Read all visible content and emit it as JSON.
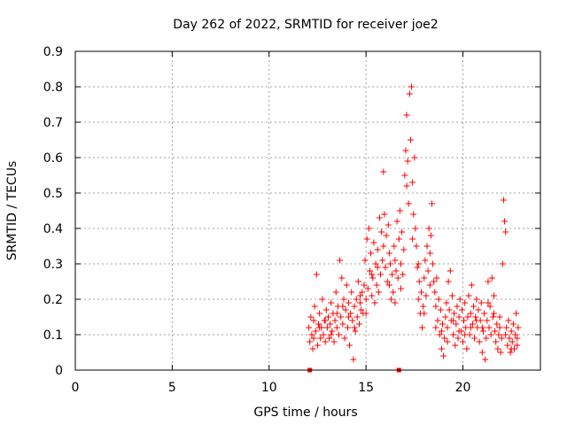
{
  "chart_data": {
    "type": "scatter",
    "title": "Day 262 of 2022, SRMTID for receiver joe2",
    "xlabel": "GPS time / hours",
    "ylabel": "SRMTID / TECUs",
    "xlim": [
      0,
      24
    ],
    "ylim": [
      0,
      0.9
    ],
    "xticks": [
      0,
      5,
      10,
      15,
      20
    ],
    "xtick_labels": [
      "0",
      "5",
      "10",
      "15",
      "20"
    ],
    "yticks": [
      0,
      0.1,
      0.2,
      0.3,
      0.4,
      0.5,
      0.6,
      0.7,
      0.8,
      0.9
    ],
    "ytick_labels": [
      "0",
      "0.1",
      "0.2",
      "0.3",
      "0.4",
      "0.5",
      "0.6",
      "0.7",
      "0.8",
      "0.9"
    ],
    "grid": true,
    "marker": "plus",
    "series_color": "#ff0000",
    "zero_markers_x": [
      12.1,
      16.7
    ],
    "series": [
      {
        "name": "SRMTID",
        "points": [
          [
            12.05,
            0.12
          ],
          [
            12.1,
            0.08
          ],
          [
            12.15,
            0.15
          ],
          [
            12.2,
            0.1
          ],
          [
            12.25,
            0.06
          ],
          [
            12.3,
            0.14
          ],
          [
            12.35,
            0.18
          ],
          [
            12.4,
            0.11
          ],
          [
            12.45,
            0.27
          ],
          [
            12.5,
            0.07
          ],
          [
            12.55,
            0.13
          ],
          [
            12.6,
            0.16
          ],
          [
            12.65,
            0.09
          ],
          [
            12.7,
            0.12
          ],
          [
            12.75,
            0.2
          ],
          [
            12.8,
            0.1
          ],
          [
            12.85,
            0.14
          ],
          [
            12.9,
            0.08
          ],
          [
            12.95,
            0.17
          ],
          [
            13.0,
            0.12
          ],
          [
            13.05,
            0.15
          ],
          [
            13.1,
            0.09
          ],
          [
            13.15,
            0.13
          ],
          [
            13.2,
            0.19
          ],
          [
            13.25,
            0.11
          ],
          [
            13.3,
            0.16
          ],
          [
            13.35,
            0.08
          ],
          [
            13.4,
            0.14
          ],
          [
            13.45,
            0.22
          ],
          [
            13.5,
            0.12
          ],
          [
            13.55,
            0.18
          ],
          [
            13.6,
            0.1
          ],
          [
            13.65,
            0.31
          ],
          [
            13.7,
            0.15
          ],
          [
            13.75,
            0.26
          ],
          [
            13.8,
            0.13
          ],
          [
            13.85,
            0.2
          ],
          [
            13.9,
            0.09
          ],
          [
            13.95,
            0.17
          ],
          [
            14.0,
            0.24
          ],
          [
            14.05,
            0.12
          ],
          [
            14.1,
            0.19
          ],
          [
            14.15,
            0.07
          ],
          [
            14.2,
            0.16
          ],
          [
            14.25,
            0.22
          ],
          [
            14.3,
            0.14
          ],
          [
            14.35,
            0.03
          ],
          [
            14.4,
            0.18
          ],
          [
            14.45,
            0.11
          ],
          [
            14.5,
            0.2
          ],
          [
            14.55,
            0.15
          ],
          [
            14.6,
            0.25
          ],
          [
            14.65,
            0.13
          ],
          [
            14.7,
            0.19
          ],
          [
            14.75,
            0.17
          ],
          [
            14.8,
            0.22
          ],
          [
            14.85,
            0.16
          ],
          [
            14.9,
            0.24
          ],
          [
            14.95,
            0.31
          ],
          [
            15.0,
            0.2
          ],
          [
            15.05,
            0.37
          ],
          [
            15.1,
            0.23
          ],
          [
            15.15,
            0.4
          ],
          [
            15.2,
            0.28
          ],
          [
            15.25,
            0.33
          ],
          [
            15.3,
            0.21
          ],
          [
            15.35,
            0.26
          ],
          [
            15.4,
            0.36
          ],
          [
            15.45,
            0.19
          ],
          [
            15.5,
            0.3
          ],
          [
            15.55,
            0.24
          ],
          [
            15.6,
            0.34
          ],
          [
            15.65,
            0.22
          ],
          [
            15.7,
            0.43
          ],
          [
            15.75,
            0.27
          ],
          [
            15.8,
            0.39
          ],
          [
            15.85,
            0.31
          ],
          [
            15.9,
            0.56
          ],
          [
            15.95,
            0.44
          ],
          [
            16.0,
            0.29
          ],
          [
            16.05,
            0.38
          ],
          [
            16.1,
            0.25
          ],
          [
            16.15,
            0.41
          ],
          [
            16.2,
            0.33
          ],
          [
            16.25,
            0.3
          ],
          [
            16.3,
            0.2
          ],
          [
            16.35,
            0.27
          ],
          [
            16.4,
            0.22
          ],
          [
            16.45,
            0.35
          ],
          [
            16.5,
            0.31
          ],
          [
            16.55,
            0.28
          ],
          [
            16.6,
            0.42
          ],
          [
            16.65,
            0.26
          ],
          [
            16.7,
            0.37
          ],
          [
            16.75,
            0.45
          ],
          [
            16.8,
            0.3
          ],
          [
            16.85,
            0.39
          ],
          [
            16.9,
            0.27
          ],
          [
            16.95,
            0.34
          ],
          [
            17.0,
            0.55
          ],
          [
            17.05,
            0.62
          ],
          [
            17.1,
            0.72
          ],
          [
            17.15,
            0.59
          ],
          [
            17.2,
            0.47
          ],
          [
            17.25,
            0.78
          ],
          [
            17.3,
            0.65
          ],
          [
            17.35,
            0.8
          ],
          [
            17.4,
            0.53
          ],
          [
            17.45,
            0.44
          ],
          [
            17.5,
            0.6
          ],
          [
            17.55,
            0.4
          ],
          [
            17.6,
            0.35
          ],
          [
            17.65,
            0.29
          ],
          [
            17.7,
            0.2
          ],
          [
            17.75,
            0.25
          ],
          [
            17.8,
            0.16
          ],
          [
            17.85,
            0.22
          ],
          [
            17.9,
            0.12
          ],
          [
            17.95,
            0.18
          ],
          [
            18.0,
            0.26
          ],
          [
            18.05,
            0.31
          ],
          [
            18.1,
            0.21
          ],
          [
            18.15,
            0.35
          ],
          [
            18.2,
            0.28
          ],
          [
            18.25,
            0.4
          ],
          [
            18.3,
            0.24
          ],
          [
            18.35,
            0.38
          ],
          [
            18.4,
            0.47
          ],
          [
            18.45,
            0.3
          ],
          [
            18.5,
            0.25
          ],
          [
            18.55,
            0.22
          ],
          [
            18.6,
            0.18
          ],
          [
            18.65,
            0.26
          ],
          [
            18.7,
            0.14
          ],
          [
            18.75,
            0.2
          ],
          [
            18.8,
            0.1
          ],
          [
            18.85,
            0.17
          ],
          [
            18.9,
            0.06
          ],
          [
            18.95,
            0.13
          ],
          [
            19.0,
            0.04
          ],
          [
            19.05,
            0.09
          ],
          [
            19.1,
            0.15
          ],
          [
            19.15,
            0.19
          ],
          [
            19.2,
            0.12
          ],
          [
            19.25,
            0.25
          ],
          [
            19.3,
            0.17
          ],
          [
            19.35,
            0.28
          ],
          [
            19.4,
            0.14
          ],
          [
            19.45,
            0.21
          ],
          [
            19.5,
            0.1
          ],
          [
            19.55,
            0.16
          ],
          [
            19.6,
            0.07
          ],
          [
            19.65,
            0.13
          ],
          [
            19.7,
            0.18
          ],
          [
            19.75,
            0.09
          ],
          [
            19.8,
            0.15
          ],
          [
            19.85,
            0.2
          ],
          [
            19.9,
            0.11
          ],
          [
            19.95,
            0.17
          ],
          [
            20.0,
            0.08
          ],
          [
            20.05,
            0.14
          ],
          [
            20.1,
            0.19
          ],
          [
            20.15,
            0.12
          ],
          [
            20.2,
            0.06
          ],
          [
            20.25,
            0.15
          ],
          [
            20.3,
            0.21
          ],
          [
            20.35,
            0.1
          ],
          [
            20.4,
            0.16
          ],
          [
            20.45,
            0.24
          ],
          [
            20.5,
            0.13
          ],
          [
            20.55,
            0.18
          ],
          [
            20.6,
            0.09
          ],
          [
            20.65,
            0.15
          ],
          [
            20.7,
            0.2
          ],
          [
            20.75,
            0.12
          ],
          [
            20.8,
            0.17
          ],
          [
            20.85,
            0.08
          ],
          [
            20.9,
            0.14
          ],
          [
            20.95,
            0.19
          ],
          [
            21.0,
            0.05
          ],
          [
            21.05,
            0.11
          ],
          [
            21.1,
            0.16
          ],
          [
            21.15,
            0.03
          ],
          [
            21.2,
            0.09
          ],
          [
            21.25,
            0.14
          ],
          [
            21.3,
            0.25
          ],
          [
            21.35,
            0.12
          ],
          [
            21.4,
            0.18
          ],
          [
            21.45,
            0.1
          ],
          [
            21.5,
            0.26
          ],
          [
            21.55,
            0.15
          ],
          [
            21.6,
            0.21
          ],
          [
            21.65,
            0.11
          ],
          [
            21.7,
            0.08
          ],
          [
            21.75,
            0.13
          ],
          [
            21.8,
            0.06
          ],
          [
            21.85,
            0.1
          ],
          [
            21.9,
            0.15
          ],
          [
            21.95,
            0.05
          ],
          [
            22.0,
            0.09
          ],
          [
            22.05,
            0.3
          ],
          [
            22.1,
            0.48
          ],
          [
            22.15,
            0.42
          ],
          [
            22.2,
            0.39
          ],
          [
            22.25,
            0.12
          ],
          [
            22.3,
            0.07
          ],
          [
            22.35,
            0.14
          ],
          [
            22.4,
            0.09
          ],
          [
            22.45,
            0.05
          ],
          [
            22.5,
            0.11
          ],
          [
            22.55,
            0.08
          ],
          [
            22.6,
            0.13
          ],
          [
            22.65,
            0.06
          ],
          [
            22.7,
            0.1
          ],
          [
            22.75,
            0.16
          ],
          [
            22.8,
            0.07
          ],
          [
            22.85,
            0.12
          ],
          [
            12.3,
            0.09
          ],
          [
            12.6,
            0.12
          ],
          [
            12.9,
            0.14
          ],
          [
            13.2,
            0.1
          ],
          [
            13.5,
            0.16
          ],
          [
            13.8,
            0.18
          ],
          [
            14.1,
            0.15
          ],
          [
            14.4,
            0.12
          ],
          [
            14.7,
            0.21
          ],
          [
            15.0,
            0.16
          ],
          [
            15.3,
            0.27
          ],
          [
            15.6,
            0.29
          ],
          [
            15.9,
            0.35
          ],
          [
            16.2,
            0.24
          ],
          [
            16.5,
            0.19
          ],
          [
            16.8,
            0.23
          ],
          [
            17.1,
            0.52
          ],
          [
            17.4,
            0.37
          ],
          [
            17.7,
            0.3
          ],
          [
            18.0,
            0.16
          ],
          [
            18.3,
            0.33
          ],
          [
            18.6,
            0.12
          ],
          [
            18.9,
            0.11
          ],
          [
            19.2,
            0.08
          ],
          [
            19.5,
            0.14
          ],
          [
            19.8,
            0.11
          ],
          [
            20.1,
            0.1
          ],
          [
            20.4,
            0.12
          ],
          [
            20.7,
            0.14
          ],
          [
            21.0,
            0.12
          ],
          [
            21.3,
            0.19
          ],
          [
            21.6,
            0.16
          ],
          [
            21.9,
            0.12
          ],
          [
            22.2,
            0.1
          ],
          [
            22.5,
            0.06
          ],
          [
            22.8,
            0.09
          ]
        ]
      }
    ]
  }
}
